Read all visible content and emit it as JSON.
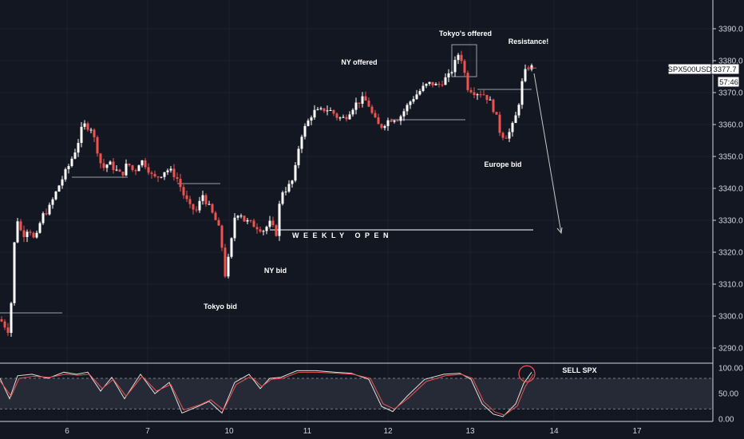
{
  "chart_data": [
    {
      "type": "candlestick",
      "symbol": "SPX500USD",
      "last_price": "3377.7",
      "countdown": "57:46",
      "y_ticks": [
        "3390.0",
        "3380.0",
        "3370.0",
        "3360.0",
        "3350.0",
        "3340.0",
        "3330.0",
        "3320.0",
        "3310.0",
        "3300.0",
        "3290.0"
      ],
      "y_tick_values": [
        3390,
        3380,
        3370,
        3360,
        3350,
        3340,
        3330,
        3320,
        3310,
        3300,
        3290
      ],
      "ylim": [
        3286,
        3397
      ],
      "x_ticks": [
        "6",
        "7",
        "10",
        "11",
        "12",
        "13",
        "14",
        "17"
      ],
      "colors": {
        "up": "#ffffff",
        "down": "#ef5350",
        "background": "#131722",
        "grid": "#1f2430",
        "line": "#c8c8c8"
      },
      "close_path": [
        [
          0,
          3299
        ],
        [
          12,
          3295
        ],
        [
          20,
          3332
        ],
        [
          28,
          3325
        ],
        [
          36,
          3328
        ],
        [
          44,
          3323
        ],
        [
          52,
          3331
        ],
        [
          62,
          3334
        ],
        [
          74,
          3341
        ],
        [
          86,
          3347
        ],
        [
          96,
          3353
        ],
        [
          104,
          3360
        ],
        [
          114,
          3359
        ],
        [
          122,
          3352
        ],
        [
          128,
          3346
        ],
        [
          136,
          3348
        ],
        [
          144,
          3346
        ],
        [
          152,
          3344
        ],
        [
          160,
          3348
        ],
        [
          168,
          3345
        ],
        [
          176,
          3349
        ],
        [
          184,
          3347
        ],
        [
          192,
          3343
        ],
        [
          200,
          3344
        ],
        [
          208,
          3346
        ],
        [
          216,
          3345
        ],
        [
          222,
          3343
        ],
        [
          230,
          3338
        ],
        [
          238,
          3334
        ],
        [
          246,
          3333
        ],
        [
          254,
          3338
        ],
        [
          262,
          3334
        ],
        [
          270,
          3330
        ],
        [
          276,
          3326
        ],
        [
          282,
          3313
        ],
        [
          288,
          3320
        ],
        [
          294,
          3331
        ],
        [
          300,
          3333
        ],
        [
          306,
          3330
        ],
        [
          314,
          3329
        ],
        [
          322,
          3328
        ],
        [
          330,
          3327
        ],
        [
          338,
          3329
        ],
        [
          346,
          3326
        ],
        [
          352,
          3339
        ],
        [
          360,
          3340
        ],
        [
          368,
          3343
        ],
        [
          376,
          3356
        ],
        [
          384,
          3360
        ],
        [
          392,
          3364
        ],
        [
          400,
          3364
        ],
        [
          408,
          3365
        ],
        [
          416,
          3364
        ],
        [
          424,
          3362
        ],
        [
          432,
          3362
        ],
        [
          440,
          3365
        ],
        [
          448,
          3367
        ],
        [
          456,
          3368
        ],
        [
          462,
          3366
        ],
        [
          468,
          3362
        ],
        [
          476,
          3359
        ],
        [
          484,
          3361
        ],
        [
          492,
          3362
        ],
        [
          500,
          3362
        ],
        [
          508,
          3365
        ],
        [
          516,
          3368
        ],
        [
          524,
          3370
        ],
        [
          532,
          3372
        ],
        [
          540,
          3373
        ],
        [
          548,
          3372
        ],
        [
          556,
          3374
        ],
        [
          562,
          3375
        ],
        [
          568,
          3378
        ],
        [
          574,
          3382
        ],
        [
          580,
          3380
        ],
        [
          584,
          3372
        ],
        [
          590,
          3371
        ],
        [
          596,
          3370
        ],
        [
          604,
          3370
        ],
        [
          612,
          3368
        ],
        [
          620,
          3364
        ],
        [
          626,
          3358
        ],
        [
          632,
          3356
        ],
        [
          640,
          3358
        ],
        [
          648,
          3364
        ],
        [
          654,
          3373
        ],
        [
          660,
          3378
        ],
        [
          664,
          3378
        ],
        [
          669,
          3377.7
        ]
      ],
      "annotations": {
        "tokyo_bid": "Tokyo bid",
        "ny_bid": "NY bid",
        "ny_offered": "NY offered",
        "tokyo_offered": "Tokyo's offered",
        "resistance": "Resistance!",
        "europe_bid": "Europe bid",
        "weekly_open": "WEEKLY OPEN",
        "weekly_open_value": 3327
      },
      "level_lines": [
        {
          "x0": 0,
          "x1": 78,
          "value": 3301
        },
        {
          "x0": 90,
          "x1": 160,
          "value": 3343.5
        },
        {
          "x0": 222,
          "x1": 276,
          "value": 3341.5
        },
        {
          "x0": 490,
          "x1": 583,
          "value": 3361.5
        },
        {
          "x0": 598,
          "x1": 666,
          "value": 3371
        }
      ]
    },
    {
      "type": "line",
      "indicator": "oscillator",
      "y_ticks": [
        "100.00",
        "50.00",
        "0.00"
      ],
      "y_tick_values": [
        100,
        50,
        0
      ],
      "band": [
        20,
        80
      ],
      "ylim": [
        -5,
        110
      ],
      "note": "SELL SPX",
      "series": [
        {
          "values_path": [
            [
              0,
              80
            ],
            [
              12,
              40
            ],
            [
              22,
              85
            ],
            [
              40,
              88
            ],
            [
              60,
              80
            ],
            [
              80,
              92
            ],
            [
              96,
              88
            ],
            [
              110,
              92
            ],
            [
              126,
              55
            ],
            [
              140,
              82
            ],
            [
              156,
              40
            ],
            [
              176,
              88
            ],
            [
              194,
              50
            ],
            [
              212,
              72
            ],
            [
              228,
              12
            ],
            [
              248,
              25
            ],
            [
              262,
              35
            ],
            [
              278,
              12
            ],
            [
              294,
              72
            ],
            [
              312,
              88
            ],
            [
              326,
              60
            ],
            [
              338,
              80
            ],
            [
              352,
              82
            ],
            [
              372,
              95
            ],
            [
              396,
              95
            ],
            [
              420,
              92
            ],
            [
              440,
              90
            ],
            [
              462,
              78
            ],
            [
              478,
              25
            ],
            [
              492,
              15
            ],
            [
              510,
              45
            ],
            [
              532,
              78
            ],
            [
              556,
              88
            ],
            [
              576,
              90
            ],
            [
              590,
              78
            ],
            [
              604,
              30
            ],
            [
              618,
              10
            ],
            [
              630,
              5
            ],
            [
              646,
              30
            ],
            [
              656,
              70
            ],
            [
              666,
              92
            ]
          ]
        },
        {
          "values_path": [
            [
              0,
              75
            ],
            [
              14,
              45
            ],
            [
              24,
              80
            ],
            [
              42,
              84
            ],
            [
              62,
              82
            ],
            [
              82,
              88
            ],
            [
              98,
              86
            ],
            [
              112,
              88
            ],
            [
              128,
              60
            ],
            [
              142,
              78
            ],
            [
              158,
              45
            ],
            [
              178,
              84
            ],
            [
              196,
              55
            ],
            [
              214,
              68
            ],
            [
              230,
              18
            ],
            [
              250,
              28
            ],
            [
              264,
              38
            ],
            [
              280,
              18
            ],
            [
              296,
              68
            ],
            [
              314,
              84
            ],
            [
              328,
              64
            ],
            [
              340,
              78
            ],
            [
              354,
              80
            ],
            [
              374,
              92
            ],
            [
              398,
              92
            ],
            [
              422,
              90
            ],
            [
              442,
              88
            ],
            [
              464,
              80
            ],
            [
              480,
              30
            ],
            [
              494,
              20
            ],
            [
              512,
              42
            ],
            [
              534,
              74
            ],
            [
              558,
              85
            ],
            [
              578,
              88
            ],
            [
              592,
              80
            ],
            [
              606,
              34
            ],
            [
              620,
              14
            ],
            [
              632,
              8
            ],
            [
              648,
              26
            ],
            [
              658,
              64
            ],
            [
              668,
              88
            ]
          ]
        }
      ]
    }
  ]
}
